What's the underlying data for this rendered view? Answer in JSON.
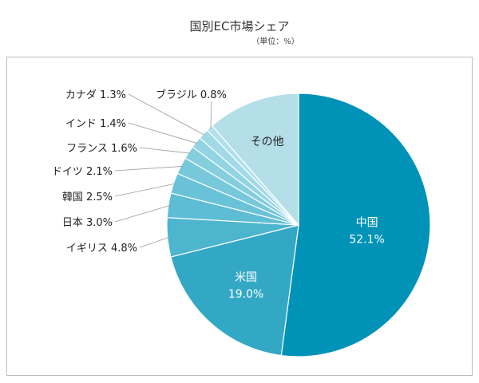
{
  "chart_data": {
    "type": "pie",
    "title": "国別EC市場シェア",
    "subtitle": "（単位：%）",
    "unit": "%",
    "start": "12 o'clock",
    "direction": "clockwise",
    "legend": "none",
    "slices": [
      {
        "label": "中国",
        "value": 52.1,
        "value_text": "52.1%",
        "color": "#0093b7",
        "label_position": "inside"
      },
      {
        "label": "米国",
        "value": 19.0,
        "value_text": "19.0%",
        "color": "#33a8c5",
        "label_position": "inside"
      },
      {
        "label": "イギリス",
        "value": 4.8,
        "value_text": "4.8%",
        "color": "#4eb5cf",
        "label_position": "outside"
      },
      {
        "label": "日本",
        "value": 3.0,
        "value_text": "3.0%",
        "color": "#5dbdd5",
        "label_position": "outside"
      },
      {
        "label": "韓国",
        "value": 2.5,
        "value_text": "2.5%",
        "color": "#69c2d8",
        "label_position": "outside"
      },
      {
        "label": "ドイツ",
        "value": 2.1,
        "value_text": "2.1%",
        "color": "#77c8db",
        "label_position": "outside"
      },
      {
        "label": "フランス",
        "value": 1.6,
        "value_text": "1.6%",
        "color": "#85cede",
        "label_position": "outside"
      },
      {
        "label": "インド",
        "value": 1.4,
        "value_text": "1.4%",
        "color": "#93d4e2",
        "label_position": "outside"
      },
      {
        "label": "カナダ",
        "value": 1.3,
        "value_text": "1.3%",
        "color": "#a1dae6",
        "label_position": "outside"
      },
      {
        "label": "ブラジル",
        "value": 0.8,
        "value_text": "0.8%",
        "color": "#b0e0ea",
        "label_position": "outside"
      },
      {
        "label": "その他",
        "value": 11.4,
        "value_text": "",
        "color": "#b4dfe8",
        "label_position": "inside"
      }
    ]
  }
}
